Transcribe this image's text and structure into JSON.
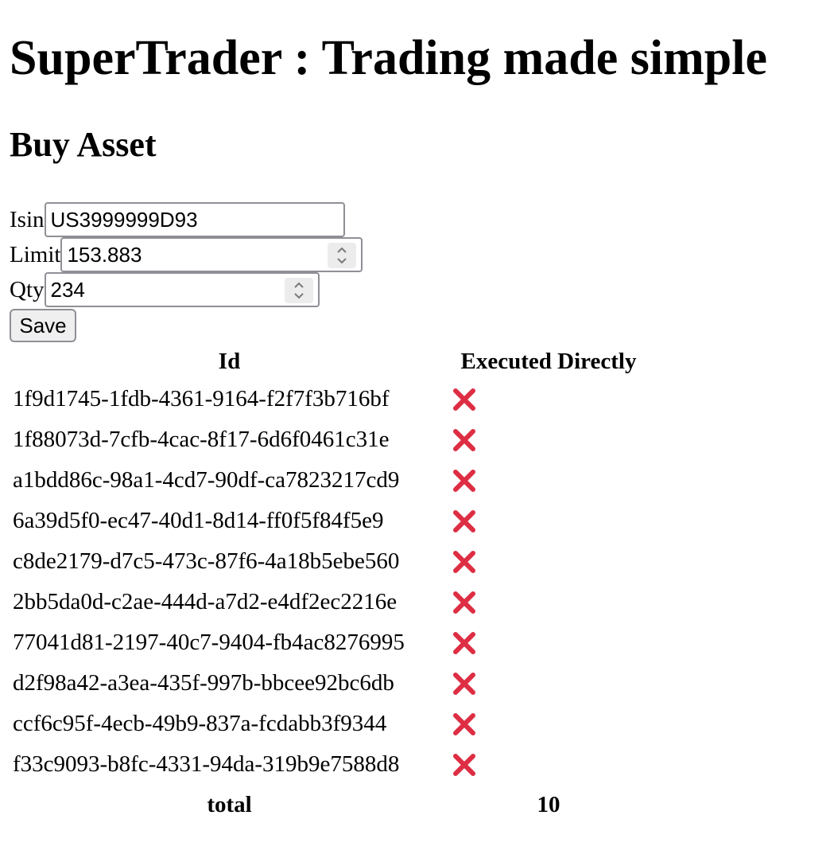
{
  "header": {
    "title": "SuperTrader : Trading made simple"
  },
  "buy_form": {
    "heading": "Buy Asset",
    "isin": {
      "label": "Isin",
      "value": "US3999999D93"
    },
    "limit": {
      "label": "Limit",
      "value": "153.883"
    },
    "qty": {
      "label": "Qty",
      "value": "234"
    },
    "save_label": "Save"
  },
  "orders_table": {
    "columns": [
      "Id",
      "Executed Directly"
    ],
    "rows": [
      {
        "id": "1f9d1745-1fdb-4361-9164-f2f7f3b716bf",
        "executed_directly": "cross-mark-icon"
      },
      {
        "id": "1f88073d-7cfb-4cac-8f17-6d6f0461c31e",
        "executed_directly": "cross-mark-icon"
      },
      {
        "id": "a1bdd86c-98a1-4cd7-90df-ca7823217cd9",
        "executed_directly": "cross-mark-icon"
      },
      {
        "id": "6a39d5f0-ec47-40d1-8d14-ff0f5f84f5e9",
        "executed_directly": "cross-mark-icon"
      },
      {
        "id": "c8de2179-d7c5-473c-87f6-4a18b5ebe560",
        "executed_directly": "cross-mark-icon"
      },
      {
        "id": "2bb5da0d-c2ae-444d-a7d2-e4df2ec2216e",
        "executed_directly": "cross-mark-icon"
      },
      {
        "id": "77041d81-2197-40c7-9404-fb4ac8276995",
        "executed_directly": "cross-mark-icon"
      },
      {
        "id": "d2f98a42-a3ea-435f-997b-bbcee92bc6db",
        "executed_directly": "cross-mark-icon"
      },
      {
        "id": "ccf6c95f-4ecb-49b9-837a-fcdabb3f9344",
        "executed_directly": "cross-mark-icon"
      },
      {
        "id": "f33c9093-b8fc-4331-94da-319b9e7588d8",
        "executed_directly": "cross-mark-icon"
      }
    ],
    "footer": {
      "label": "total",
      "value": "10"
    }
  },
  "colors": {
    "cross_mark": "#dd2e44",
    "field_border": "#8f8f96",
    "button_bg": "#efefef"
  }
}
